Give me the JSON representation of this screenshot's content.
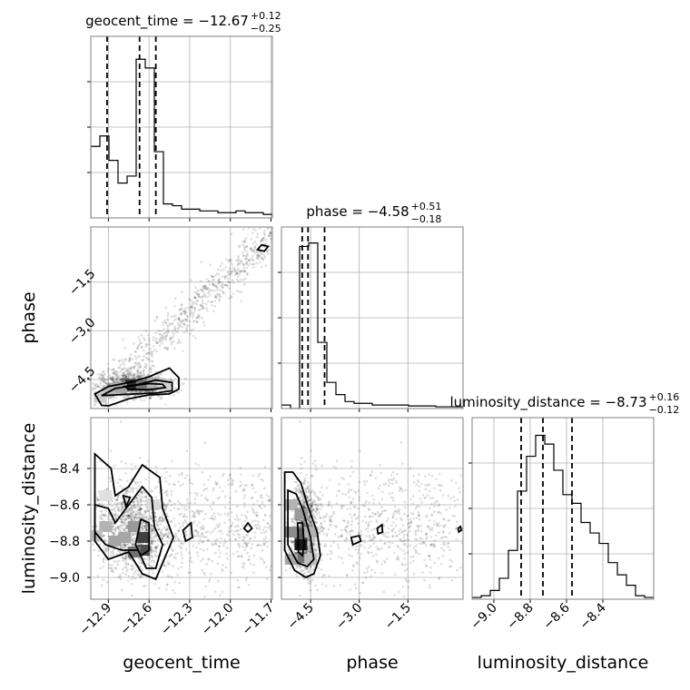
{
  "chart_data": {
    "type": "corner",
    "parameters": [
      "geocent_time",
      "phase",
      "luminosity_distance"
    ],
    "axis_labels": {
      "geocent_time": "geocent_time",
      "phase": "phase",
      "luminosity_distance": "luminosity_distance"
    },
    "ranges": {
      "geocent_time": [
        -13.03,
        -11.69
      ],
      "phase": [
        -5.4,
        0.2
      ],
      "luminosity_distance": [
        -9.12,
        -8.12
      ]
    },
    "ticks": {
      "geocent_time": {
        "values": [
          -12.9,
          -12.6,
          -12.3,
          -12.0,
          -11.7
        ],
        "labels": [
          "−12.9",
          "−12.6",
          "−12.3",
          "−12.0",
          "−11.7"
        ]
      },
      "phase": {
        "values": [
          -4.5,
          -3.0,
          -1.5
        ],
        "labels": [
          "−4.5",
          "−3.0",
          "−1.5"
        ]
      },
      "luminosity_distance": {
        "values": [
          -9.0,
          -8.8,
          -8.6,
          -8.4
        ],
        "labels": [
          "−9.0",
          "−8.8",
          "−8.6",
          "−8.4"
        ]
      }
    },
    "titles": {
      "geocent_time": {
        "main": "geocent_time = −12.67",
        "plus": "+0.12",
        "minus": "−0.25"
      },
      "phase": {
        "main": "phase = −4.58",
        "plus": "+0.51",
        "minus": "−0.18"
      },
      "luminosity_distance": {
        "main": "luminosity_distance = −8.73",
        "plus": "+0.16",
        "minus": "−0.12"
      }
    },
    "quantiles": {
      "geocent_time": [
        -12.91,
        -12.67,
        -12.55
      ],
      "phase": [
        -4.76,
        -4.58,
        -4.07
      ],
      "luminosity_distance": [
        -8.85,
        -8.73,
        -8.57
      ]
    },
    "histograms": {
      "geocent_time": {
        "range": [
          -13.03,
          -11.69
        ],
        "counts": [
          0.41,
          0.47,
          0.33,
          0.2,
          0.24,
          0.91,
          0.86,
          0.38,
          0.08,
          0.07,
          0.05,
          0.05,
          0.04,
          0.04,
          0.03,
          0.03,
          0.04,
          0.03,
          0.03,
          0.02
        ]
      },
      "phase": {
        "range": [
          -5.4,
          0.2
        ],
        "counts": [
          0.02,
          0.0,
          0.93,
          0.95,
          0.38,
          0.15,
          0.08,
          0.04,
          0.03,
          0.03,
          0.02,
          0.02,
          0.02,
          0.02,
          0.015,
          0.015,
          0.015,
          0.01,
          0.01,
          0.01
        ]
      },
      "luminosity_distance": {
        "range": [
          -9.12,
          -8.12
        ],
        "counts": [
          0.01,
          0.02,
          0.05,
          0.12,
          0.28,
          0.62,
          0.82,
          0.94,
          0.89,
          0.74,
          0.6,
          0.55,
          0.44,
          0.38,
          0.32,
          0.21,
          0.14,
          0.08,
          0.02,
          0.01
        ]
      }
    },
    "contours": [
      {
        "x": "geocent_time",
        "y": "phase",
        "levels": [
          [
            [
              -12.95,
              -5.3
            ],
            [
              -13.0,
              -4.95
            ],
            [
              -12.9,
              -4.72
            ],
            [
              -12.75,
              -4.6
            ],
            [
              -12.6,
              -4.42
            ],
            [
              -12.45,
              -4.15
            ],
            [
              -12.38,
              -4.45
            ],
            [
              -12.38,
              -4.8
            ],
            [
              -12.45,
              -4.95
            ],
            [
              -12.6,
              -4.98
            ],
            [
              -12.75,
              -5.1
            ],
            [
              -12.9,
              -5.32
            ]
          ],
          [
            [
              -12.95,
              -5.0
            ],
            [
              -12.85,
              -4.78
            ],
            [
              -12.7,
              -4.68
            ],
            [
              -12.55,
              -4.52
            ],
            [
              -12.43,
              -4.6
            ],
            [
              -12.43,
              -4.85
            ],
            [
              -12.55,
              -4.92
            ],
            [
              -12.7,
              -4.95
            ],
            [
              -12.85,
              -4.98
            ]
          ],
          [
            [
              -12.78,
              -4.72
            ],
            [
              -12.6,
              -4.63
            ],
            [
              -12.5,
              -4.65
            ],
            [
              -12.48,
              -4.75
            ],
            [
              -12.6,
              -4.82
            ],
            [
              -12.75,
              -4.8
            ]
          ],
          [
            [
              -11.8,
              -0.5
            ],
            [
              -11.77,
              -0.35
            ],
            [
              -11.72,
              -0.4
            ],
            [
              -11.75,
              -0.55
            ]
          ]
        ]
      },
      {
        "x": "geocent_time",
        "y": "luminosity_distance",
        "levels": [
          [
            [
              -13.0,
              -8.32
            ],
            [
              -12.88,
              -8.4
            ],
            [
              -12.85,
              -8.55
            ],
            [
              -12.75,
              -8.5
            ],
            [
              -12.65,
              -8.38
            ],
            [
              -12.52,
              -8.45
            ],
            [
              -12.5,
              -8.62
            ],
            [
              -12.42,
              -8.78
            ],
            [
              -12.5,
              -8.92
            ],
            [
              -12.55,
              -9.01
            ],
            [
              -12.65,
              -8.98
            ],
            [
              -12.75,
              -8.86
            ],
            [
              -12.9,
              -8.9
            ],
            [
              -13.0,
              -8.8
            ]
          ],
          [
            [
              -13.0,
              -8.6
            ],
            [
              -12.9,
              -8.62
            ],
            [
              -12.85,
              -8.7
            ],
            [
              -12.75,
              -8.6
            ],
            [
              -12.65,
              -8.5
            ],
            [
              -12.58,
              -8.56
            ],
            [
              -12.56,
              -8.72
            ],
            [
              -12.5,
              -8.82
            ],
            [
              -12.55,
              -8.95
            ],
            [
              -12.62,
              -8.95
            ],
            [
              -12.68,
              -8.85
            ],
            [
              -12.8,
              -8.85
            ],
            [
              -12.92,
              -8.82
            ],
            [
              -13.0,
              -8.75
            ]
          ],
          [
            [
              -12.66,
              -8.68
            ],
            [
              -12.6,
              -8.7
            ],
            [
              -12.6,
              -8.85
            ],
            [
              -12.66,
              -8.88
            ],
            [
              -12.7,
              -8.82
            ]
          ],
          [
            [
              -12.79,
              -8.55
            ],
            [
              -12.77,
              -8.61
            ],
            [
              -12.74,
              -8.56
            ]
          ],
          [
            [
              -12.35,
              -8.74
            ],
            [
              -12.29,
              -8.7
            ],
            [
              -12.28,
              -8.78
            ],
            [
              -12.33,
              -8.8
            ]
          ],
          [
            [
              -11.9,
              -8.73
            ],
            [
              -11.87,
              -8.7
            ],
            [
              -11.84,
              -8.73
            ],
            [
              -11.87,
              -8.75
            ]
          ]
        ]
      },
      {
        "x": "phase",
        "y": "luminosity_distance",
        "levels": [
          [
            [
              -5.3,
              -8.42
            ],
            [
              -5.05,
              -8.42
            ],
            [
              -4.8,
              -8.48
            ],
            [
              -4.6,
              -8.6
            ],
            [
              -4.3,
              -8.75
            ],
            [
              -4.2,
              -8.88
            ],
            [
              -4.4,
              -8.98
            ],
            [
              -4.65,
              -9.0
            ],
            [
              -5.0,
              -8.96
            ],
            [
              -5.3,
              -8.85
            ]
          ],
          [
            [
              -5.2,
              -8.52
            ],
            [
              -4.95,
              -8.54
            ],
            [
              -4.75,
              -8.62
            ],
            [
              -4.5,
              -8.78
            ],
            [
              -4.4,
              -8.9
            ],
            [
              -4.6,
              -8.94
            ],
            [
              -4.9,
              -8.92
            ],
            [
              -5.2,
              -8.82
            ]
          ],
          [
            [
              -4.9,
              -8.7
            ],
            [
              -4.75,
              -8.7
            ],
            [
              -4.7,
              -8.82
            ],
            [
              -4.75,
              -8.88
            ],
            [
              -4.88,
              -8.86
            ]
          ],
          [
            [
              -3.25,
              -8.78
            ],
            [
              -3.0,
              -8.77
            ],
            [
              -2.95,
              -8.8
            ],
            [
              -3.2,
              -8.82
            ]
          ],
          [
            [
              -2.45,
              -8.73
            ],
            [
              -2.3,
              -8.71
            ],
            [
              -2.28,
              -8.75
            ],
            [
              -2.42,
              -8.76
            ]
          ],
          [
            [
              0.05,
              -8.73
            ],
            [
              0.12,
              -8.72
            ],
            [
              0.15,
              -8.74
            ],
            [
              0.07,
              -8.75
            ]
          ]
        ]
      }
    ],
    "density_cells": [
      {
        "x": "geocent_time",
        "y": "phase",
        "cells": [
          [
            -12.73,
            -4.68,
            0.85
          ],
          [
            -12.65,
            -4.68,
            0.55
          ],
          [
            -12.81,
            -4.75,
            0.35
          ],
          [
            -12.57,
            -4.6,
            0.3
          ],
          [
            -12.9,
            -4.9,
            0.28
          ],
          [
            -12.96,
            -5.05,
            0.2
          ],
          [
            -12.49,
            -4.68,
            0.18
          ]
        ]
      },
      {
        "x": "geocent_time",
        "y": "luminosity_distance",
        "cells": [
          [
            -12.64,
            -8.78,
            0.75
          ],
          [
            -12.64,
            -8.85,
            0.7
          ],
          [
            -12.71,
            -8.86,
            0.55
          ],
          [
            -12.71,
            -8.72,
            0.4
          ],
          [
            -12.78,
            -8.78,
            0.35
          ],
          [
            -12.85,
            -8.8,
            0.35
          ],
          [
            -12.92,
            -8.72,
            0.3
          ],
          [
            -12.57,
            -8.6,
            0.15
          ],
          [
            -12.99,
            -8.77,
            0.25
          ],
          [
            -12.92,
            -8.55,
            0.12
          ]
        ]
      },
      {
        "x": "phase",
        "y": "luminosity_distance",
        "cells": [
          [
            -4.8,
            -8.82,
            0.9
          ],
          [
            -4.8,
            -8.76,
            0.65
          ],
          [
            -4.8,
            -8.89,
            0.55
          ],
          [
            -5.1,
            -8.75,
            0.45
          ],
          [
            -5.1,
            -8.6,
            0.3
          ],
          [
            -4.8,
            -8.65,
            0.4
          ],
          [
            -4.5,
            -8.75,
            0.3
          ],
          [
            -5.1,
            -8.9,
            0.35
          ],
          [
            -4.5,
            -8.9,
            0.25
          ]
        ]
      }
    ]
  }
}
